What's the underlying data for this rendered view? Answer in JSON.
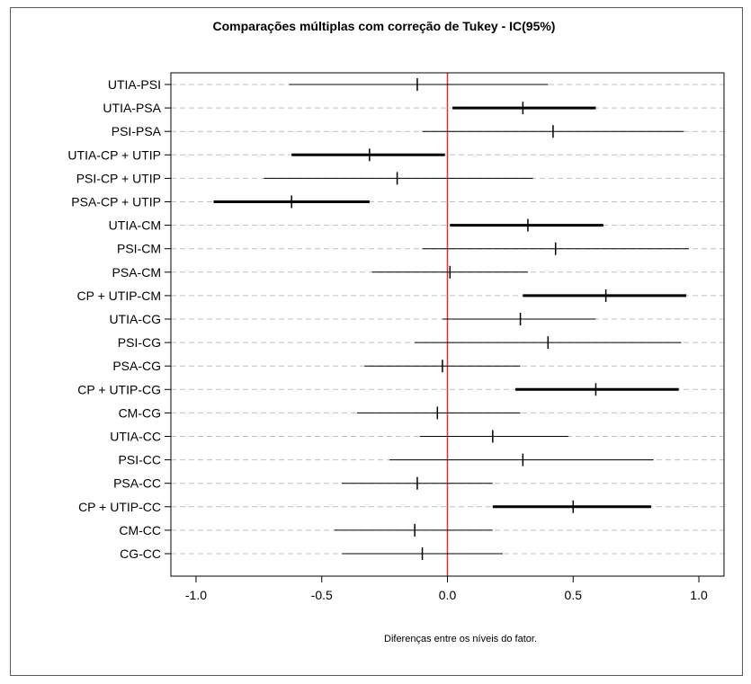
{
  "chart_data": {
    "type": "errorbar",
    "title": "Comparações múltiplas com correção de Tukey - IC(95%)",
    "xlabel": "Diferenças entre os níveis do fator.",
    "ylabel": "",
    "xlim": [
      -1.1,
      1.1
    ],
    "x_ticks": [
      -1.0,
      -0.5,
      0.0,
      0.5,
      1.0
    ],
    "x_tick_labels": [
      "-1.0",
      "-0.5",
      "0.0",
      "0.5",
      "1.0"
    ],
    "reference_line": {
      "x": 0.0,
      "color": "#e03030"
    },
    "grid": "horizontal dashed",
    "colors": {
      "interval": "#000000",
      "gridline": "#c0c0c0",
      "reference": "#e03030"
    },
    "comparisons": [
      {
        "label": "UTIA-PSI",
        "estimate": -0.12,
        "lower": -0.63,
        "upper": 0.4,
        "significant": false
      },
      {
        "label": "UTIA-PSA",
        "estimate": 0.3,
        "lower": 0.02,
        "upper": 0.59,
        "significant": true
      },
      {
        "label": "PSI-PSA",
        "estimate": 0.42,
        "lower": -0.1,
        "upper": 0.94,
        "significant": false
      },
      {
        "label": "UTIA-CP + UTIP",
        "estimate": -0.31,
        "lower": -0.62,
        "upper": -0.01,
        "significant": true
      },
      {
        "label": "PSI-CP + UTIP",
        "estimate": -0.2,
        "lower": -0.73,
        "upper": 0.34,
        "significant": false
      },
      {
        "label": "PSA-CP + UTIP",
        "estimate": -0.62,
        "lower": -0.93,
        "upper": -0.31,
        "significant": true
      },
      {
        "label": "UTIA-CM",
        "estimate": 0.32,
        "lower": 0.01,
        "upper": 0.62,
        "significant": true
      },
      {
        "label": "PSI-CM",
        "estimate": 0.43,
        "lower": -0.1,
        "upper": 0.96,
        "significant": false
      },
      {
        "label": "PSA-CM",
        "estimate": 0.01,
        "lower": -0.3,
        "upper": 0.32,
        "significant": false
      },
      {
        "label": "CP + UTIP-CM",
        "estimate": 0.63,
        "lower": 0.3,
        "upper": 0.95,
        "significant": true
      },
      {
        "label": "UTIA-CG",
        "estimate": 0.29,
        "lower": -0.02,
        "upper": 0.59,
        "significant": false
      },
      {
        "label": "PSI-CG",
        "estimate": 0.4,
        "lower": -0.13,
        "upper": 0.93,
        "significant": false
      },
      {
        "label": "PSA-CG",
        "estimate": -0.02,
        "lower": -0.33,
        "upper": 0.29,
        "significant": false
      },
      {
        "label": "CP + UTIP-CG",
        "estimate": 0.59,
        "lower": 0.27,
        "upper": 0.92,
        "significant": true
      },
      {
        "label": "CM-CG",
        "estimate": -0.04,
        "lower": -0.36,
        "upper": 0.29,
        "significant": false
      },
      {
        "label": "UTIA-CC",
        "estimate": 0.18,
        "lower": -0.11,
        "upper": 0.48,
        "significant": false
      },
      {
        "label": "PSI-CC",
        "estimate": 0.3,
        "lower": -0.23,
        "upper": 0.82,
        "significant": false
      },
      {
        "label": "PSA-CC",
        "estimate": -0.12,
        "lower": -0.42,
        "upper": 0.18,
        "significant": false
      },
      {
        "label": "CP + UTIP-CC",
        "estimate": 0.5,
        "lower": 0.18,
        "upper": 0.81,
        "significant": true
      },
      {
        "label": "CM-CC",
        "estimate": -0.13,
        "lower": -0.45,
        "upper": 0.18,
        "significant": false
      },
      {
        "label": "CG-CC",
        "estimate": -0.1,
        "lower": -0.42,
        "upper": 0.22,
        "significant": false
      }
    ]
  }
}
